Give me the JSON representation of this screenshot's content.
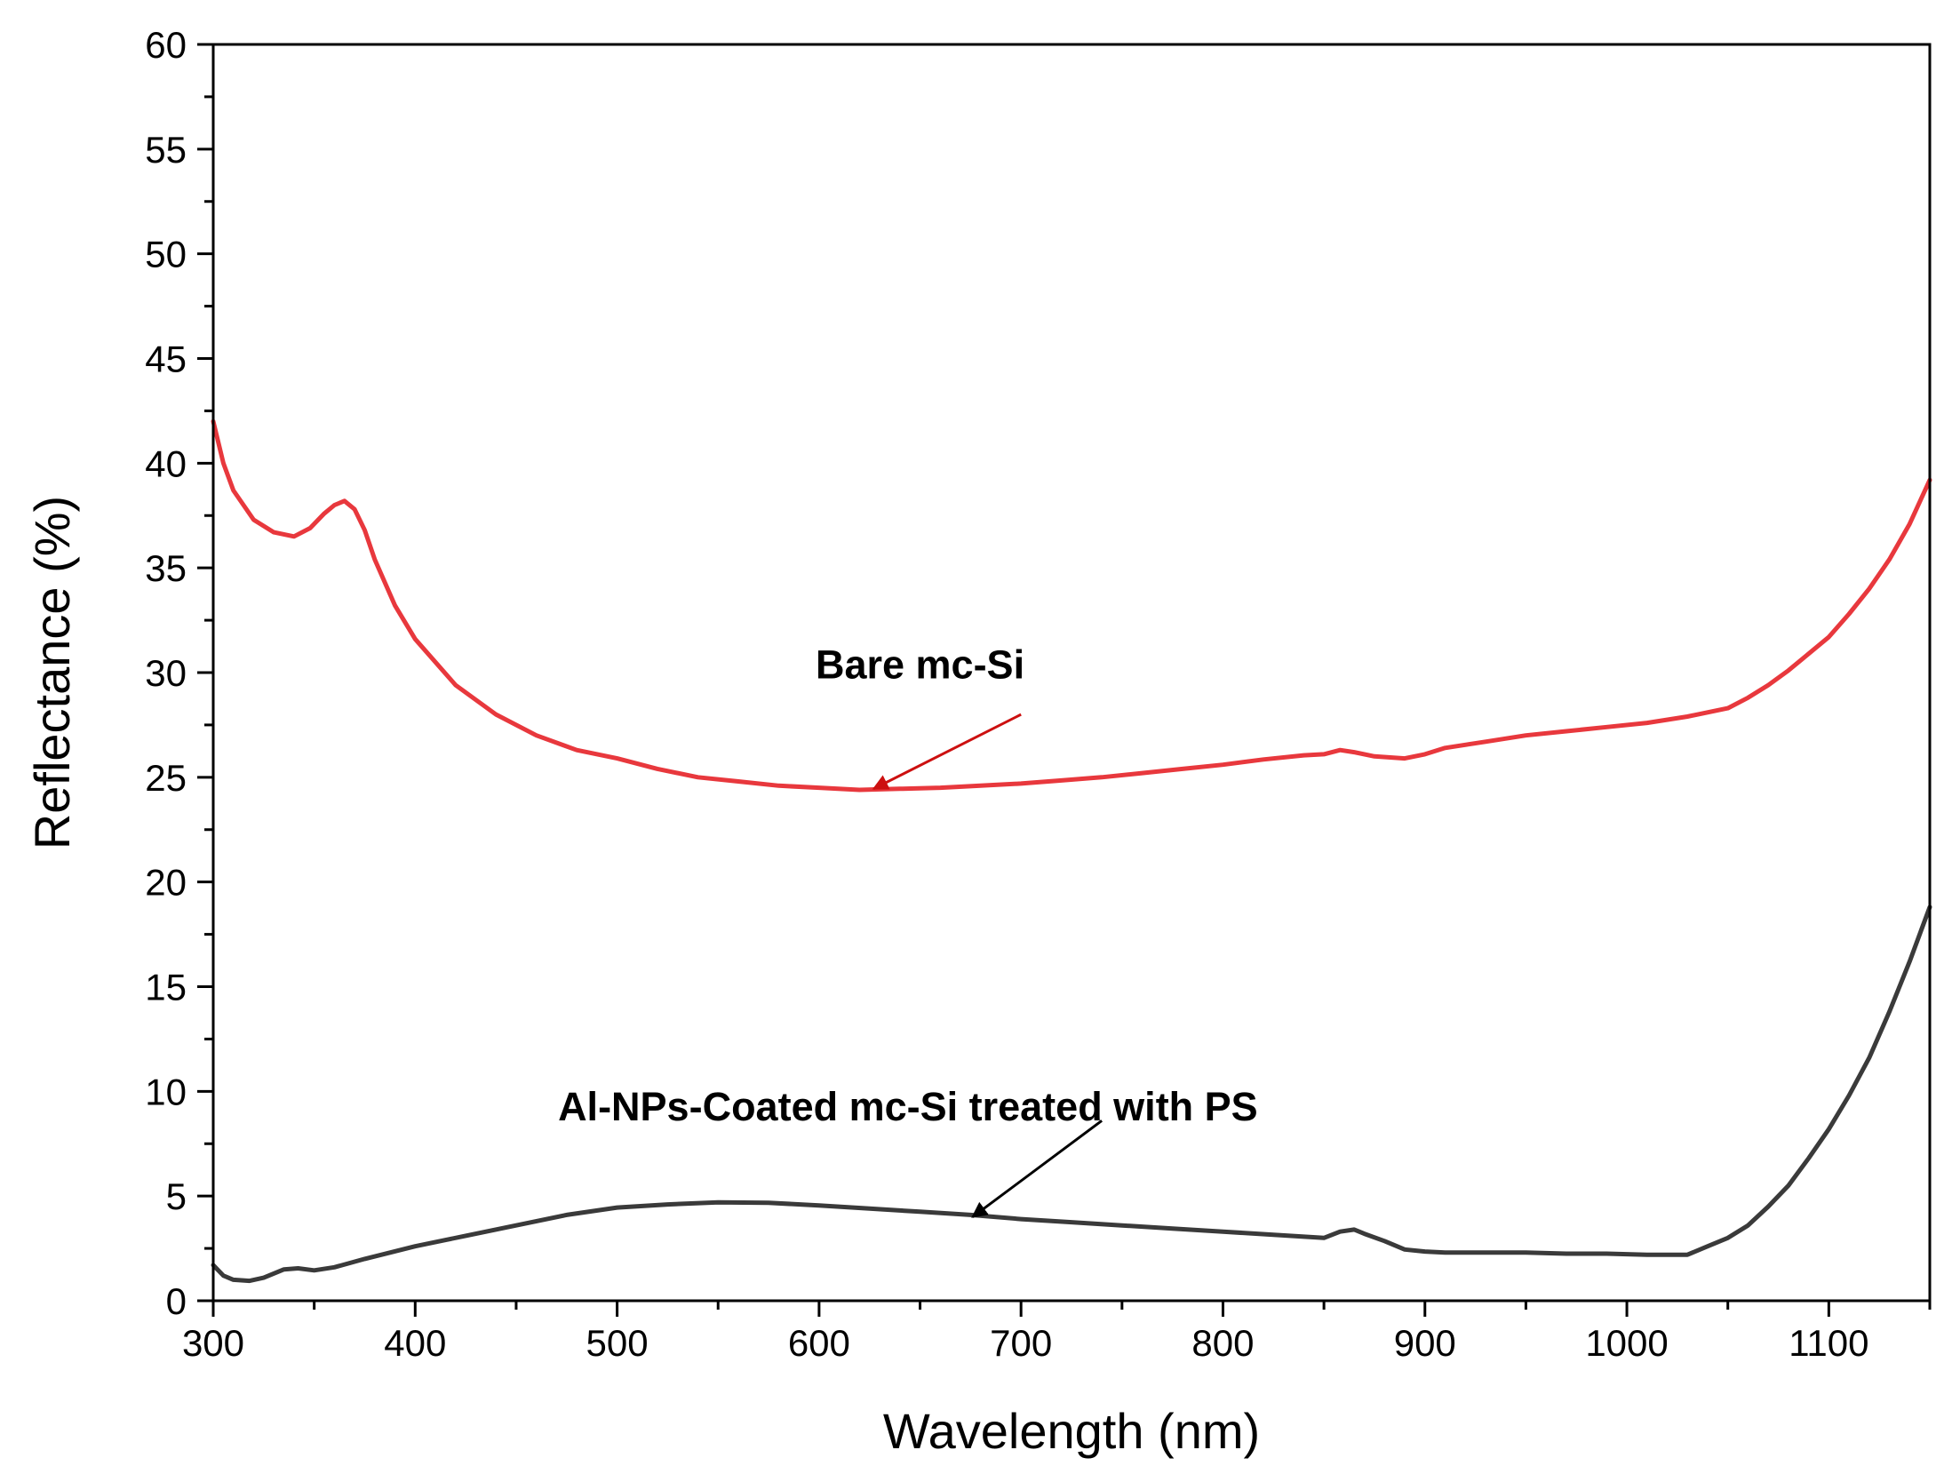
{
  "chart_data": {
    "type": "line",
    "title": "",
    "xlabel": "Wavelength (nm)",
    "ylabel": "Reflectance (%)",
    "xlim": [
      300,
      1150
    ],
    "ylim": [
      0,
      60
    ],
    "xticks": [
      300,
      400,
      500,
      600,
      700,
      800,
      900,
      1000,
      1100
    ],
    "yticks": [
      0,
      5,
      10,
      15,
      20,
      25,
      30,
      35,
      40,
      45,
      50,
      55,
      60
    ],
    "grid": false,
    "series": [
      {
        "name": "Bare mc-Si",
        "color": "#e8383d",
        "x": [
          300,
          305,
          310,
          320,
          330,
          340,
          348,
          355,
          360,
          365,
          370,
          375,
          380,
          390,
          400,
          420,
          440,
          460,
          480,
          500,
          520,
          540,
          560,
          580,
          600,
          620,
          640,
          660,
          680,
          700,
          720,
          740,
          760,
          780,
          800,
          820,
          840,
          850,
          858,
          865,
          875,
          890,
          900,
          910,
          930,
          950,
          970,
          990,
          1010,
          1030,
          1050,
          1060,
          1070,
          1080,
          1090,
          1100,
          1110,
          1120,
          1130,
          1140,
          1150
        ],
        "values": [
          42.0,
          40.0,
          38.7,
          37.3,
          36.7,
          36.5,
          36.9,
          37.6,
          38.0,
          38.2,
          37.8,
          36.8,
          35.4,
          33.2,
          31.6,
          29.4,
          28.0,
          27.0,
          26.3,
          25.9,
          25.4,
          25.0,
          24.8,
          24.6,
          24.5,
          24.4,
          24.45,
          24.5,
          24.6,
          24.7,
          24.85,
          25.0,
          25.2,
          25.4,
          25.6,
          25.85,
          26.05,
          26.1,
          26.3,
          26.2,
          26.0,
          25.9,
          26.1,
          26.4,
          26.7,
          27.0,
          27.2,
          27.4,
          27.6,
          27.9,
          28.3,
          28.8,
          29.4,
          30.1,
          30.9,
          31.7,
          32.8,
          34.0,
          35.4,
          37.1,
          39.2
        ]
      },
      {
        "name": "Al-NPs-Coated mc-Si treated with PS",
        "color": "#3a3a3a",
        "x": [
          300,
          305,
          310,
          318,
          325,
          335,
          342,
          350,
          360,
          375,
          400,
          425,
          450,
          475,
          500,
          525,
          550,
          575,
          600,
          625,
          650,
          675,
          700,
          725,
          750,
          775,
          800,
          825,
          850,
          858,
          865,
          870,
          880,
          890,
          900,
          910,
          930,
          950,
          970,
          990,
          1010,
          1030,
          1040,
          1050,
          1060,
          1070,
          1080,
          1090,
          1100,
          1110,
          1120,
          1130,
          1140,
          1150
        ],
        "values": [
          1.7,
          1.2,
          1.0,
          0.95,
          1.1,
          1.5,
          1.55,
          1.45,
          1.6,
          2.0,
          2.6,
          3.1,
          3.6,
          4.1,
          4.45,
          4.6,
          4.7,
          4.68,
          4.55,
          4.4,
          4.25,
          4.1,
          3.9,
          3.75,
          3.6,
          3.45,
          3.3,
          3.15,
          3.0,
          3.3,
          3.4,
          3.2,
          2.85,
          2.45,
          2.35,
          2.3,
          2.3,
          2.3,
          2.25,
          2.25,
          2.2,
          2.2,
          2.6,
          3.0,
          3.6,
          4.5,
          5.5,
          6.8,
          8.2,
          9.8,
          11.6,
          13.8,
          16.2,
          18.8
        ]
      }
    ],
    "annotations": [
      {
        "text": "Bare mc-Si",
        "series": 0,
        "arrow_to": [
          627,
          24.45
        ],
        "arrow_from": [
          700,
          28.0
        ],
        "text_at": [
          650,
          30.4
        ]
      },
      {
        "text": "Al-NPs-Coated mc-Si treated with PS",
        "series": 1,
        "arrow_to": [
          676,
          4.0
        ],
        "arrow_from": [
          740,
          8.6
        ],
        "text_at": [
          644,
          9.3
        ]
      }
    ]
  }
}
